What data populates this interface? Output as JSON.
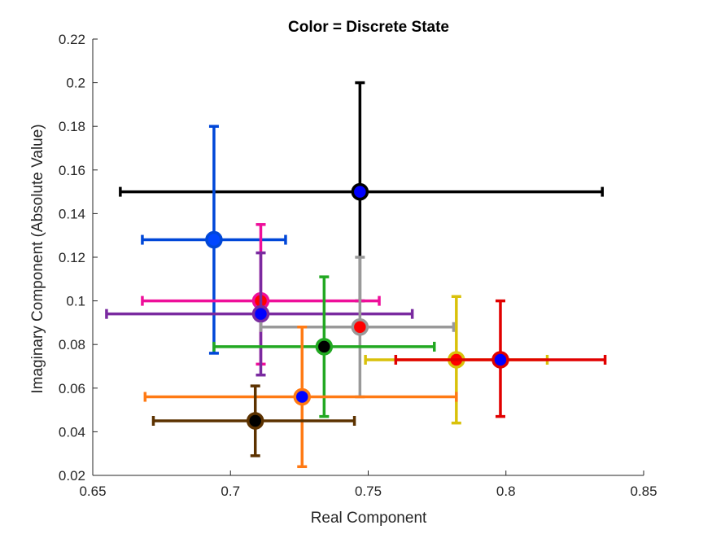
{
  "chart_data": {
    "type": "scatter",
    "title": "Color = Discrete State",
    "xlabel": "Real Component",
    "ylabel": "Imaginary Component (Absolute Value)",
    "xlim": [
      0.65,
      0.85
    ],
    "ylim": [
      0.02,
      0.22
    ],
    "xticks": [
      "0.65",
      "0.7",
      "0.75",
      "0.8",
      "0.85"
    ],
    "yticks": [
      "0.02",
      "0.04",
      "0.06",
      "0.08",
      "0.1",
      "0.12",
      "0.14",
      "0.16",
      "0.18",
      "0.2",
      "0.22"
    ],
    "grid": false,
    "points": [
      {
        "x": 0.747,
        "y": 0.15,
        "xerr": [
          0.66,
          0.835
        ],
        "yerr": [
          0.1,
          0.2
        ],
        "color": "#000000",
        "marker": "#0000ff"
      },
      {
        "x": 0.694,
        "y": 0.128,
        "xerr": [
          0.668,
          0.72
        ],
        "yerr": [
          0.076,
          0.18
        ],
        "color": "#0047d8",
        "marker": "#0047ff"
      },
      {
        "x": 0.711,
        "y": 0.1,
        "xerr": [
          0.668,
          0.754
        ],
        "yerr": [
          0.071,
          0.135
        ],
        "color": "#ee0f9a",
        "marker": "#ff0000"
      },
      {
        "x": 0.711,
        "y": 0.094,
        "xerr": [
          0.655,
          0.766
        ],
        "yerr": [
          0.066,
          0.122
        ],
        "color": "#7a2aa0",
        "marker": "#0000ff"
      },
      {
        "x": 0.747,
        "y": 0.088,
        "xerr": [
          0.711,
          0.781
        ],
        "yerr": [
          0.056,
          0.12
        ],
        "color": "#999999",
        "marker": "#ff0000"
      },
      {
        "x": 0.734,
        "y": 0.079,
        "xerr": [
          0.694,
          0.774
        ],
        "yerr": [
          0.047,
          0.111
        ],
        "color": "#22a822",
        "marker": "#000000"
      },
      {
        "x": 0.782,
        "y": 0.073,
        "xerr": [
          0.749,
          0.815
        ],
        "yerr": [
          0.044,
          0.102
        ],
        "color": "#d9c10a",
        "marker": "#ff0000"
      },
      {
        "x": 0.798,
        "y": 0.073,
        "xerr": [
          0.76,
          0.836
        ],
        "yerr": [
          0.047,
          0.1
        ],
        "color": "#e10000",
        "marker": "#0000ff"
      },
      {
        "x": 0.726,
        "y": 0.056,
        "xerr": [
          0.669,
          0.782
        ],
        "yerr": [
          0.024,
          0.088
        ],
        "color": "#ff7a14",
        "marker": "#0000ff"
      },
      {
        "x": 0.709,
        "y": 0.045,
        "xerr": [
          0.672,
          0.745
        ],
        "yerr": [
          0.029,
          0.061
        ],
        "color": "#5c3200",
        "marker": "#000000"
      }
    ]
  }
}
